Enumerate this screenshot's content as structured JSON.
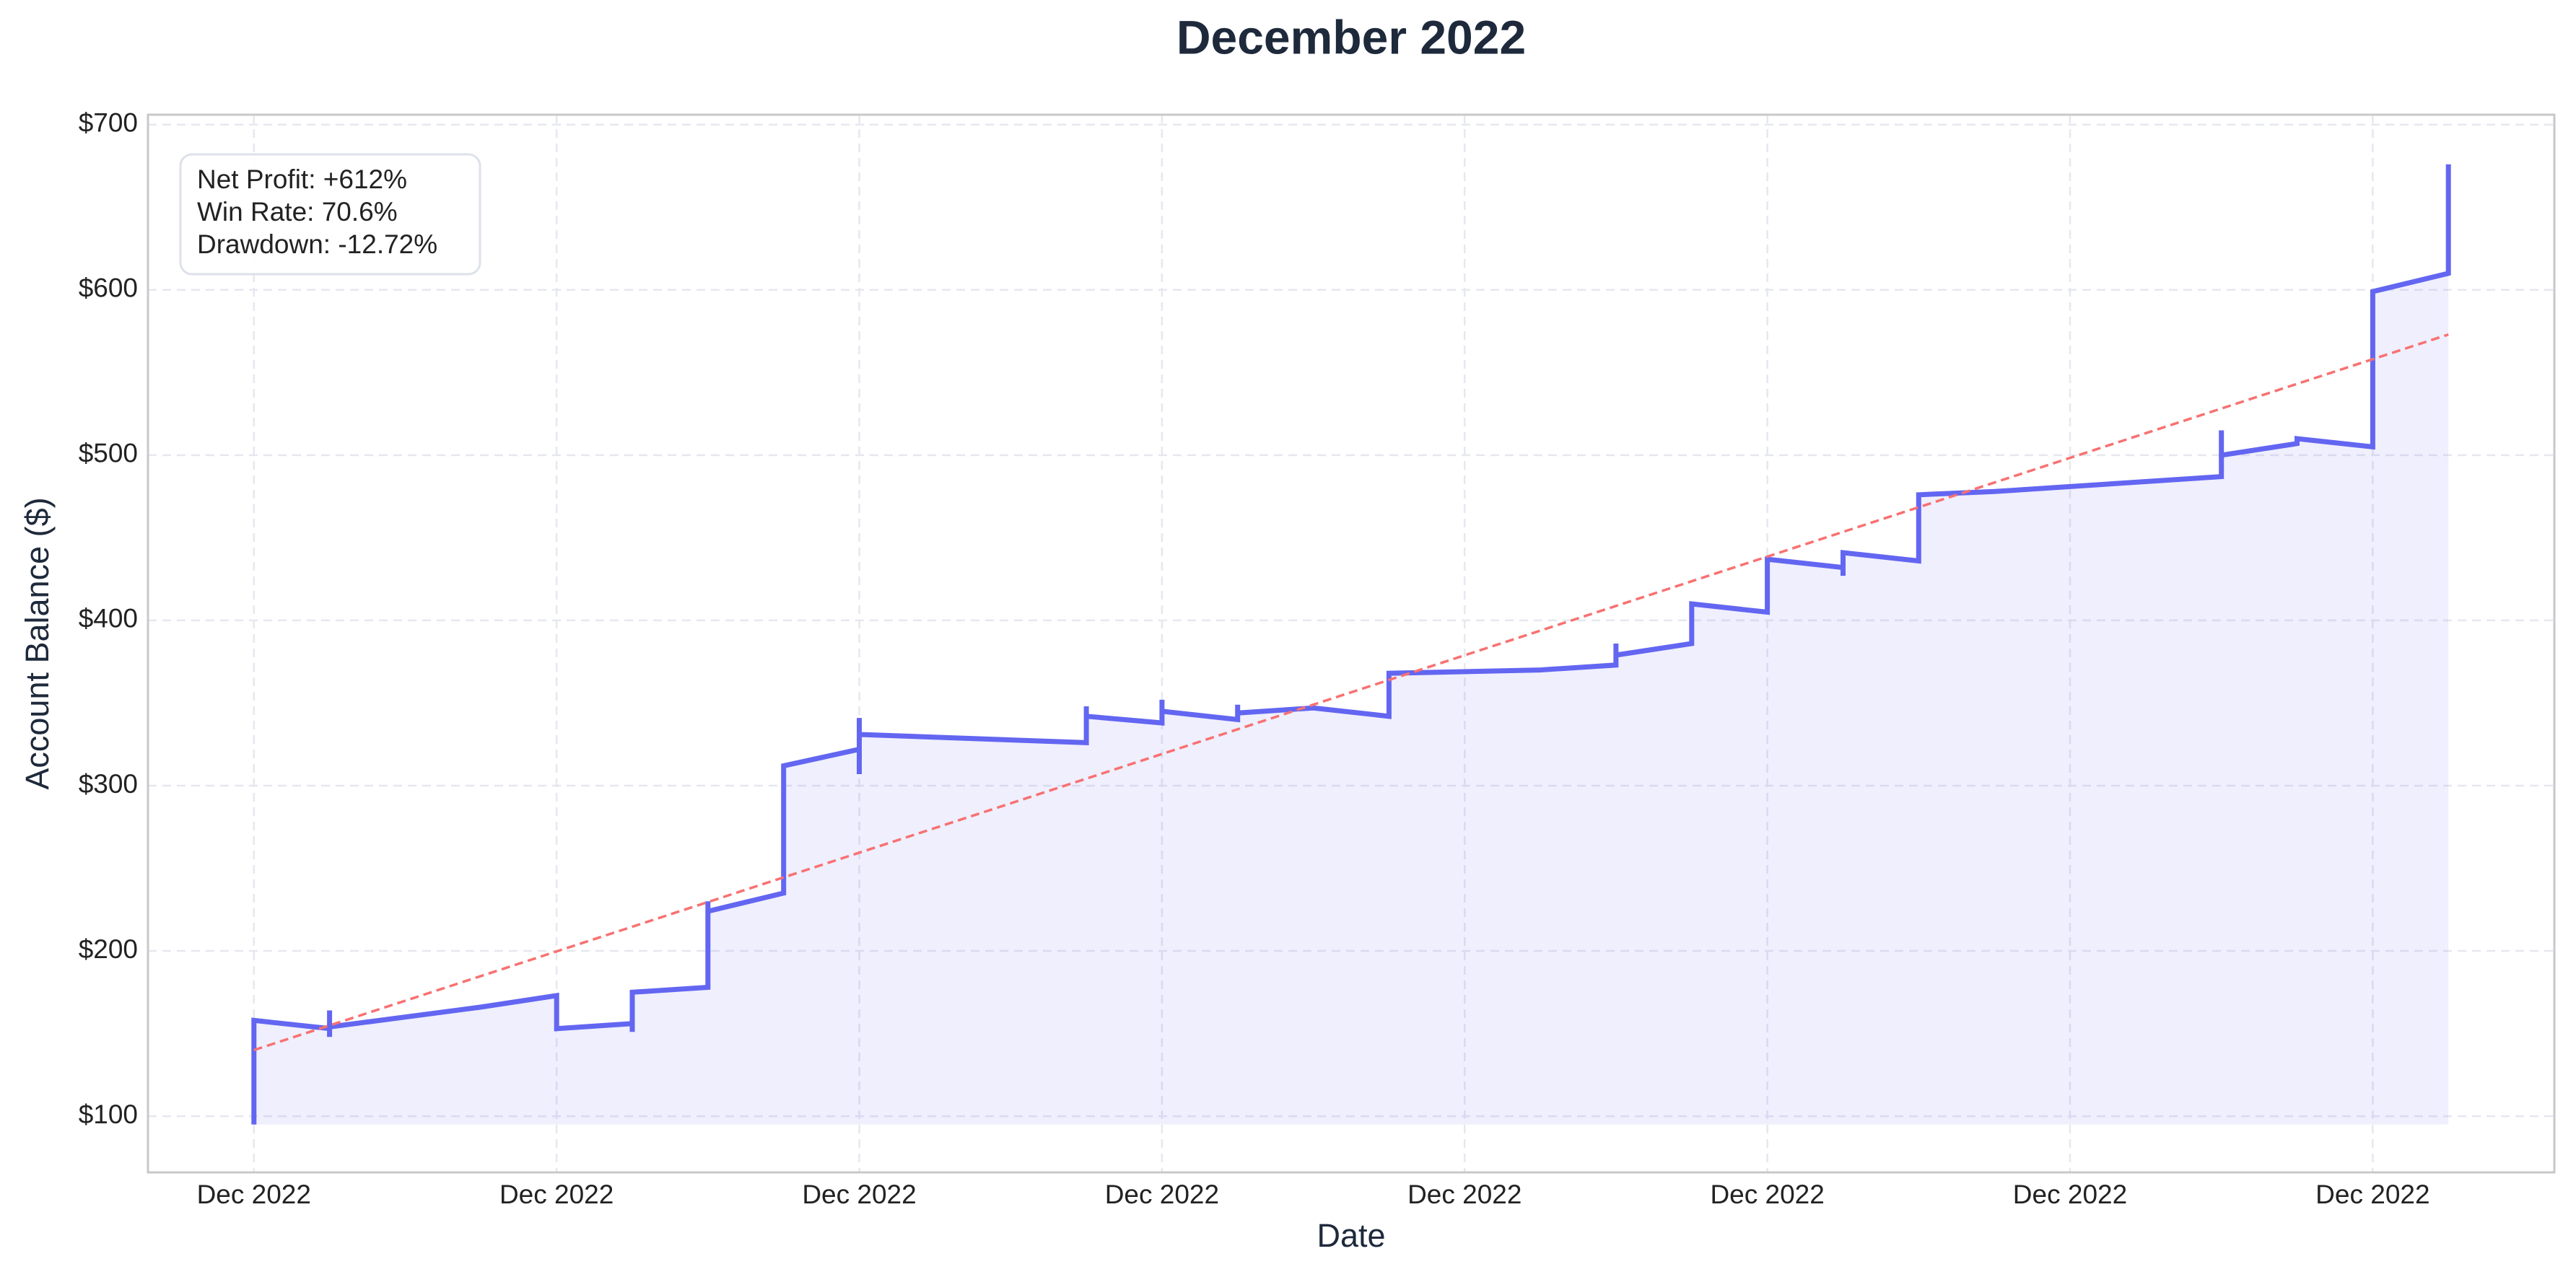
{
  "chart_data": {
    "type": "line",
    "title": "December 2022",
    "xlabel": "Date",
    "ylabel": "Account Balance ($)",
    "stats": [
      "Net Profit: +612%",
      "Win Rate: 70.6%",
      "Drawdown: -12.72%"
    ],
    "series": [
      {
        "color": "#6366f1",
        "x": [
          0,
          0,
          0.25,
          0.25,
          0.25,
          0.25,
          0.75,
          1,
          1,
          1.25,
          1.25,
          1.25,
          1.5,
          1.5,
          1.5,
          1.75,
          1.75,
          2,
          2,
          2,
          2,
          2.75,
          2.75,
          2.75,
          3,
          3,
          3,
          3.25,
          3.25,
          3.25,
          3.5,
          3.75,
          3.75,
          4.25,
          4.5,
          4.5,
          4.5,
          4.75,
          4.75,
          5,
          5,
          5.25,
          5.25,
          5.25,
          5.5,
          5.5,
          5.75,
          6.5,
          6.5,
          6.5,
          6.75,
          6.75,
          7,
          7,
          7.25,
          7.25
        ],
        "values": [
          95,
          158,
          153,
          148,
          164,
          154,
          166,
          173,
          153,
          156,
          151,
          175,
          178,
          230,
          224,
          235,
          312,
          322,
          341,
          307,
          331,
          326,
          348,
          342,
          338,
          352,
          345,
          340,
          349,
          344,
          347,
          342,
          368,
          370,
          373,
          386,
          379,
          386,
          410,
          405,
          437,
          432,
          427,
          441,
          436,
          476,
          478,
          487,
          515,
          500,
          507,
          510,
          505,
          599,
          610,
          676
        ]
      }
    ],
    "trend": {
      "color": "#f87171",
      "x": [
        0,
        7.25
      ],
      "values": [
        140,
        573
      ]
    },
    "xlim": [
      -0.35,
      7.6
    ],
    "ylim": [
      66,
      706
    ],
    "xticks": [
      {
        "value": 0,
        "label": "Dec 2022"
      },
      {
        "value": 1,
        "label": "Dec 2022"
      },
      {
        "value": 2,
        "label": "Dec 2022"
      },
      {
        "value": 3,
        "label": "Dec 2022"
      },
      {
        "value": 4,
        "label": "Dec 2022"
      },
      {
        "value": 5,
        "label": "Dec 2022"
      },
      {
        "value": 6,
        "label": "Dec 2022"
      },
      {
        "value": 7,
        "label": "Dec 2022"
      }
    ],
    "yticks": [
      {
        "value": 100,
        "label": "$100"
      },
      {
        "value": 200,
        "label": "$200"
      },
      {
        "value": 300,
        "label": "$300"
      },
      {
        "value": 400,
        "label": "$400"
      },
      {
        "value": 500,
        "label": "$500"
      },
      {
        "value": 600,
        "label": "$600"
      },
      {
        "value": 700,
        "label": "$700"
      }
    ],
    "grid": true
  }
}
